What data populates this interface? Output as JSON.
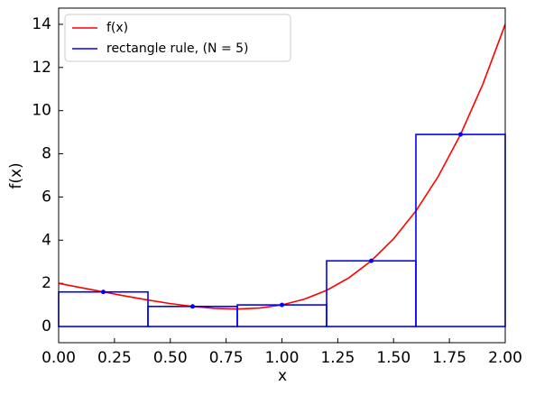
{
  "chart_data": {
    "type": "line",
    "xlabel": "x",
    "ylabel": "f(x)",
    "xlim": [
      0,
      2
    ],
    "ylim": [
      -0.75,
      14.75
    ],
    "xticks": [
      {
        "value": 0,
        "label": "0.00"
      },
      {
        "value": 0.25,
        "label": "0.25"
      },
      {
        "value": 0.5,
        "label": "0.50"
      },
      {
        "value": 0.75,
        "label": "0.75"
      },
      {
        "value": 1,
        "label": "1.00"
      },
      {
        "value": 1.25,
        "label": "1.25"
      },
      {
        "value": 1.5,
        "label": "1.50"
      },
      {
        "value": 1.75,
        "label": "1.75"
      },
      {
        "value": 2,
        "label": "2.00"
      }
    ],
    "yticks": [
      0,
      2,
      4,
      6,
      8,
      10,
      12,
      14
    ],
    "legend": "upper left",
    "series": [
      {
        "name": "f(x)",
        "color": "#ff0000",
        "x": [
          0,
          0.1,
          0.2,
          0.3,
          0.4,
          0.5,
          0.6,
          0.7,
          0.8,
          0.9,
          1.0,
          1.1,
          1.2,
          1.3,
          1.4,
          1.5,
          1.6,
          1.7,
          1.8,
          1.9,
          2.0
        ],
        "values": [
          2,
          1.8001,
          1.6016,
          1.4081,
          1.2256,
          1.0625,
          0.9296,
          0.8401,
          0.8096,
          0.8561,
          1,
          1.2641,
          1.6736,
          2.2561,
          3.0416,
          4.0625,
          5.3536,
          6.9521,
          8.8976,
          11.2321,
          14
        ]
      },
      {
        "name": "rectangle rule, (N = 5)",
        "color": "#0000ff",
        "bins": [
          0,
          0.4,
          0.8,
          1.2,
          1.6,
          2.0
        ],
        "x": [
          0.2,
          0.6,
          1.0,
          1.4,
          1.8
        ],
        "values": [
          1.6016,
          0.9296,
          1,
          3.0416,
          8.8976
        ]
      }
    ]
  }
}
